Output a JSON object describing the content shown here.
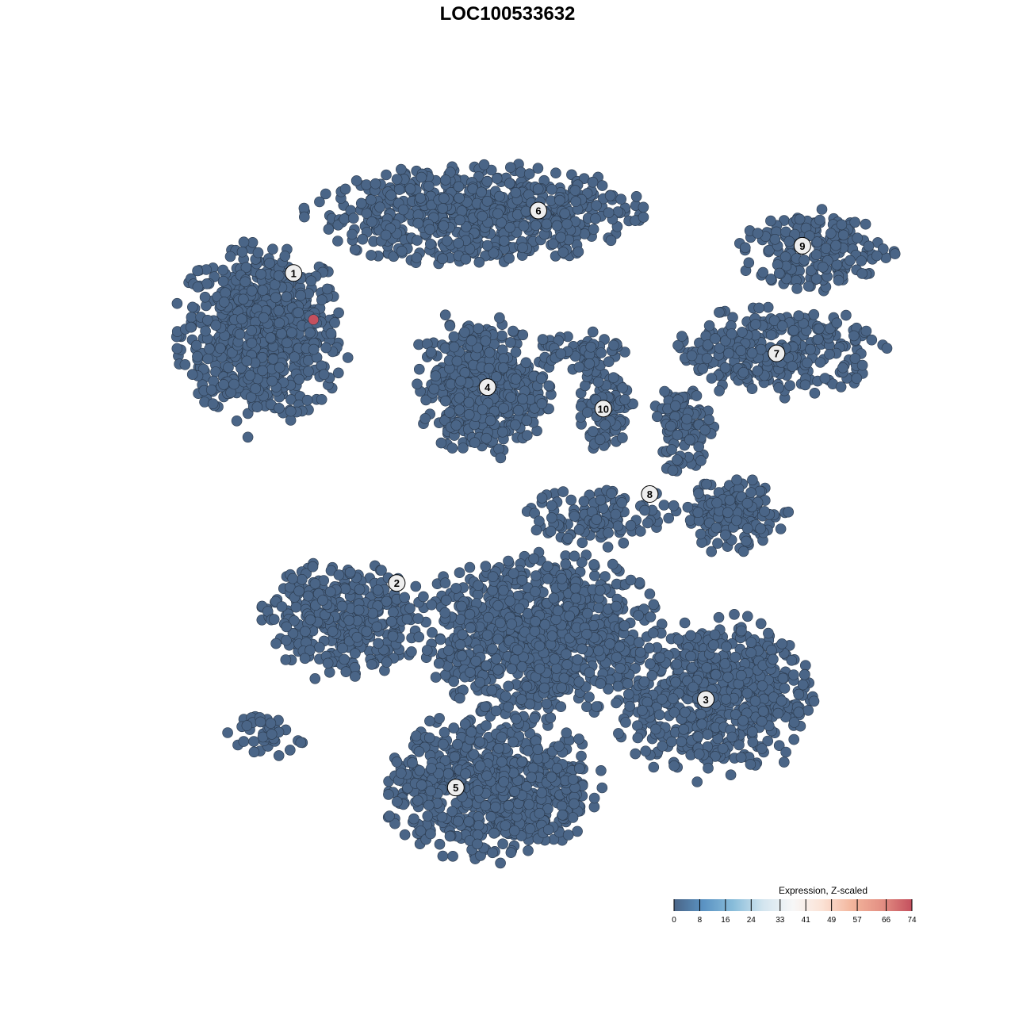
{
  "chart_data": {
    "type": "scatter",
    "title": "LOC100533632",
    "xlabel": "",
    "ylabel": "",
    "xlim": [
      -50,
      50
    ],
    "ylim": [
      -50,
      50
    ],
    "grid": false,
    "point_color_low": "#4a6587",
    "point_color_high": "#c4505e",
    "point_stroke": "#2b3a4d",
    "clusters": [
      {
        "label": "1",
        "label_pos": [
          -31.7,
          32.4
        ],
        "blobs": [
          {
            "center": [
              -36,
              24
            ],
            "spread": [
              11,
              12
            ],
            "n": 700
          }
        ]
      },
      {
        "label": "2",
        "label_pos": [
          -17.7,
          -10.8
        ],
        "blobs": [
          {
            "center": [
              -25.3,
              -15.7
            ],
            "spread": [
              11,
              8
            ],
            "n": 350
          },
          {
            "center": [
              -35,
              -31.8
            ],
            "spread": [
              5,
              3
            ],
            "n": 40
          }
        ]
      },
      {
        "label": "3",
        "label_pos": [
          24.2,
          -27
        ],
        "blobs": [
          {
            "center": [
              25.3,
              -26.8
            ],
            "spread": [
              13,
              11
            ],
            "n": 600
          }
        ]
      },
      {
        "label": "4",
        "label_pos": [
          -5.4,
          16.5
        ],
        "blobs": [
          {
            "center": [
              -6,
              16.5
            ],
            "spread": [
              8.6,
              9.4
            ],
            "n": 450
          }
        ]
      },
      {
        "label": "5",
        "label_pos": [
          -9.7,
          -39.3
        ],
        "blobs": [
          {
            "center": [
              -4.8,
              -39
            ],
            "spread": [
              14,
              10
            ],
            "n": 700
          },
          {
            "center": [
              1.6,
              -18
            ],
            "spread": [
              16,
              11
            ],
            "n": 900
          }
        ]
      },
      {
        "label": "6",
        "label_pos": [
          1.5,
          41.1
        ],
        "blobs": [
          {
            "center": [
              -7,
              40.6
            ],
            "spread": [
              21.5,
              6.6
            ],
            "n": 700
          }
        ]
      },
      {
        "label": "7",
        "label_pos": [
          33.8,
          21.2
        ],
        "blobs": [
          {
            "center": [
              33.8,
              21.3
            ],
            "spread": [
              14,
              6
            ],
            "n": 300
          }
        ]
      },
      {
        "label": "8",
        "label_pos": [
          16.6,
          1.6
        ],
        "blobs": [
          {
            "center": [
              28,
              -1.4
            ],
            "spread": [
              7,
              5
            ],
            "n": 150
          },
          {
            "center": [
              21,
              10.8
            ],
            "spread": [
              4,
              6
            ],
            "n": 100
          },
          {
            "center": [
              10.2,
              -1.4
            ],
            "spread": [
              10,
              4
            ],
            "n": 120
          }
        ]
      },
      {
        "label": "9",
        "label_pos": [
          37.3,
          36.2
        ],
        "blobs": [
          {
            "center": [
              39.4,
              35.4
            ],
            "spread": [
              10,
              5.5
            ],
            "n": 200
          }
        ]
      },
      {
        "label": "10",
        "label_pos": [
          10.3,
          13.5
        ],
        "blobs": [
          {
            "center": [
              10.3,
              13.5
            ],
            "spread": [
              4.3,
              6
            ],
            "n": 90
          },
          {
            "center": [
              7,
              21.8
            ],
            "spread": [
              6,
              3
            ],
            "n": 60
          }
        ]
      }
    ],
    "highlighted_points": [
      {
        "x": -29,
        "y": 25.9,
        "expression": 74
      }
    ],
    "legend": {
      "title": "Expression, Z-scaled",
      "placement": "bottom-right",
      "ticks": [
        "0",
        "8",
        "16",
        "24",
        "33",
        "41",
        "49",
        "57",
        "66",
        "74"
      ],
      "colors": [
        "#4a6587",
        "#5b93c3",
        "#89bdda",
        "#d3e5ef",
        "#f7f7f7",
        "#fbe2d5",
        "#f3b59c",
        "#e38f83",
        "#c4505e"
      ]
    }
  }
}
